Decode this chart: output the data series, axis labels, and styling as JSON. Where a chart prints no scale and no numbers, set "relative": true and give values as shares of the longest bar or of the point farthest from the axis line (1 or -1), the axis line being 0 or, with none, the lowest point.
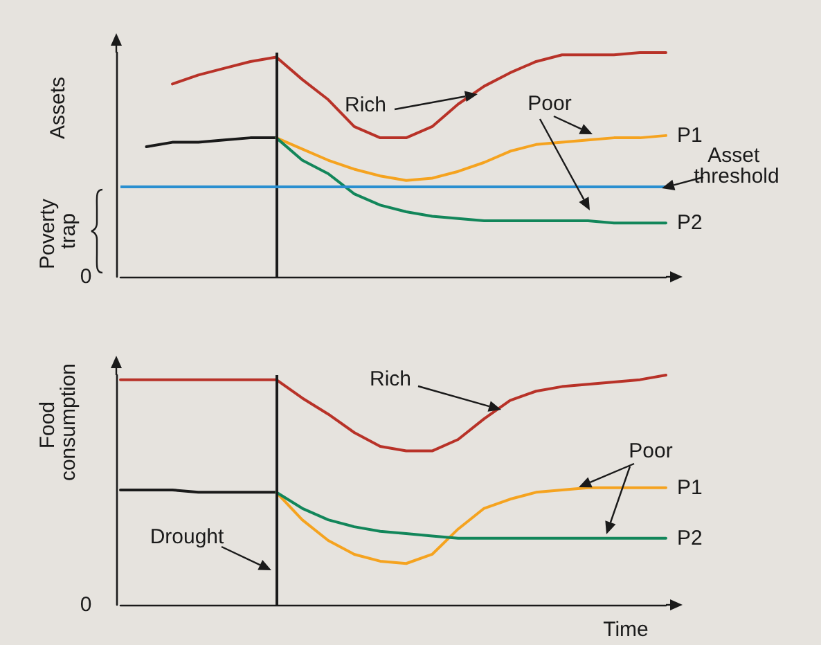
{
  "chart_data": [
    {
      "type": "line",
      "relative": true,
      "ylabel": "Assets",
      "categories": [
        null,
        null,
        null,
        null,
        null,
        null,
        null,
        null,
        null,
        null,
        null,
        null,
        null,
        null,
        null,
        null,
        null,
        null,
        null,
        null,
        null,
        null
      ],
      "series": [
        {
          "color": "#b83228",
          "values": [
            null,
            null,
            0.86,
            0.9,
            0.93,
            0.96,
            0.98,
            0.88,
            0.79,
            0.67,
            0.62,
            0.62,
            0.67,
            0.77,
            0.85,
            0.91,
            0.96,
            0.99,
            0.99,
            0.99,
            1,
            1
          ]
        },
        {
          "color": "#1a1a1a",
          "values": [
            null,
            0.58,
            0.6,
            0.6,
            0.61,
            0.62,
            0.62,
            null,
            null,
            null,
            null,
            null,
            null,
            null,
            null,
            null,
            null,
            null,
            null,
            null,
            null,
            null
          ]
        },
        {
          "name": "P1",
          "color": "#f5a31f",
          "values": [
            null,
            null,
            null,
            null,
            null,
            null,
            0.62,
            0.57,
            0.52,
            0.48,
            0.45,
            0.43,
            0.44,
            0.47,
            0.51,
            0.56,
            0.59,
            0.6,
            0.61,
            0.62,
            0.62,
            0.63
          ]
        },
        {
          "name": "P2",
          "color": "#12865a",
          "values": [
            null,
            null,
            null,
            null,
            null,
            null,
            0.62,
            0.52,
            0.46,
            0.37,
            0.32,
            0.29,
            0.27,
            0.26,
            0.25,
            0.25,
            0.25,
            0.25,
            0.25,
            0.24,
            0.24,
            0.24
          ]
        }
      ],
      "ref_lines": [
        {
          "axis": "y",
          "value": 0.4,
          "label": "Asset threshold",
          "color": "#2a8fd0"
        }
      ],
      "annotations": [
        "Rich",
        "Poor",
        "Poverty trap",
        "0"
      ]
    },
    {
      "type": "line",
      "relative": true,
      "ylabel": "Food consumption",
      "xlabel": "Time",
      "categories": [
        null,
        null,
        null,
        null,
        null,
        null,
        null,
        null,
        null,
        null,
        null,
        null,
        null,
        null,
        null,
        null,
        null,
        null,
        null,
        null,
        null,
        null
      ],
      "series": [
        {
          "color": "#b83228",
          "values": [
            0.98,
            0.98,
            0.98,
            0.98,
            0.98,
            0.98,
            0.98,
            0.9,
            0.83,
            0.75,
            0.69,
            0.67,
            0.67,
            0.72,
            0.81,
            0.89,
            0.93,
            0.95,
            0.96,
            0.97,
            0.98,
            1
          ]
        },
        {
          "color": "#1a1a1a",
          "values": [
            0.5,
            0.5,
            0.5,
            0.49,
            0.49,
            0.49,
            0.49,
            null,
            null,
            null,
            null,
            null,
            null,
            null,
            null,
            null,
            null,
            null,
            null,
            null,
            null,
            null
          ]
        },
        {
          "name": "P1",
          "color": "#f5a31f",
          "values": [
            null,
            null,
            null,
            null,
            null,
            null,
            0.49,
            0.37,
            0.28,
            0.22,
            0.19,
            0.18,
            0.22,
            0.33,
            0.42,
            0.46,
            0.49,
            0.5,
            0.51,
            0.51,
            0.51,
            0.51
          ]
        },
        {
          "name": "P2",
          "color": "#12865a",
          "values": [
            null,
            null,
            null,
            null,
            null,
            null,
            0.49,
            0.42,
            0.37,
            0.34,
            0.32,
            0.31,
            0.3,
            0.29,
            0.29,
            0.29,
            0.29,
            0.29,
            0.29,
            0.29,
            0.29,
            0.29
          ]
        }
      ],
      "annotations": [
        "Rich",
        "Poor",
        "0",
        "Drought"
      ]
    }
  ]
}
